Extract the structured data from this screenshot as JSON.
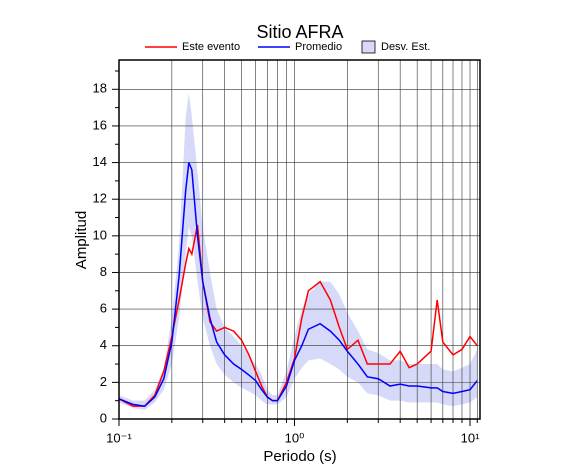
{
  "chart_data": {
    "type": "line",
    "title": "Sitio AFRA",
    "xlabel": "Periodo (s)",
    "ylabel": "Amplitud",
    "xscale": "log",
    "xlim": [
      0.1,
      11.4
    ],
    "ylim": [
      0,
      19.6
    ],
    "xticks": [
      {
        "value": 0.1,
        "label": "10⁻¹"
      },
      {
        "value": 1,
        "label": "10⁰"
      },
      {
        "value": 10,
        "label": "10¹"
      }
    ],
    "xminor_ticks": [
      0.2,
      0.3,
      0.4,
      0.5,
      0.6,
      0.7,
      0.8,
      0.9,
      2,
      3,
      4,
      5,
      6,
      7,
      8,
      9,
      11
    ],
    "yticks": [
      0,
      2,
      4,
      6,
      8,
      10,
      12,
      14,
      16,
      18
    ],
    "yminor_ticks": [
      1,
      3,
      5,
      7,
      9,
      11,
      13,
      15,
      17,
      19
    ],
    "grid": true,
    "x": [
      0.1,
      0.12,
      0.14,
      0.16,
      0.18,
      0.2,
      0.22,
      0.24,
      0.25,
      0.26,
      0.28,
      0.3,
      0.33,
      0.36,
      0.4,
      0.45,
      0.5,
      0.55,
      0.6,
      0.65,
      0.7,
      0.75,
      0.8,
      0.9,
      1.0,
      1.1,
      1.2,
      1.4,
      1.6,
      1.8,
      2.0,
      2.3,
      2.6,
      3.0,
      3.5,
      4.0,
      4.5,
      5.0,
      6.0,
      6.5,
      7,
      8,
      9,
      10,
      11
    ],
    "series": [
      {
        "name": "Este evento",
        "color": "#ff0000",
        "values": [
          1.1,
          0.7,
          0.7,
          1.3,
          2.6,
          4.5,
          6.5,
          8.5,
          9.3,
          9.0,
          10.6,
          7.5,
          5.3,
          4.8,
          5.0,
          4.8,
          4.3,
          3.5,
          2.6,
          1.8,
          1.2,
          1.0,
          1.0,
          2.0,
          3.3,
          5.5,
          7.0,
          7.5,
          6.5,
          5.0,
          3.8,
          4.3,
          3.0,
          3.0,
          3.0,
          3.7,
          2.8,
          3.0,
          3.7,
          6.5,
          4.2,
          3.5,
          3.8,
          4.5,
          4.0
        ]
      },
      {
        "name": "Promedio",
        "color": "#0000ff",
        "values": [
          1.1,
          0.8,
          0.7,
          1.2,
          2.2,
          4.2,
          7.8,
          12.5,
          14.0,
          13.6,
          10.0,
          7.5,
          5.5,
          4.2,
          3.5,
          3.0,
          2.7,
          2.4,
          2.1,
          1.6,
          1.2,
          1.0,
          1.0,
          1.8,
          3.2,
          4.0,
          4.9,
          5.2,
          4.8,
          4.3,
          3.7,
          3.0,
          2.3,
          2.2,
          1.8,
          1.9,
          1.8,
          1.8,
          1.7,
          1.7,
          1.5,
          1.4,
          1.5,
          1.6,
          2.1
        ]
      },
      {
        "name": "Desv. Est.",
        "color": "#d6d9f7",
        "band": true,
        "upper": [
          1.3,
          1.0,
          1.0,
          1.6,
          2.8,
          5.5,
          9.5,
          16.5,
          17.8,
          16.5,
          13.5,
          10.5,
          8,
          6,
          5,
          4.5,
          4,
          3.5,
          3,
          2.4,
          1.6,
          1.3,
          1.3,
          2.6,
          4.5,
          6,
          6.8,
          7.5,
          7.5,
          6.8,
          5.8,
          4.8,
          3.8,
          3.6,
          3.2,
          3.2,
          3.0,
          3.0,
          3.0,
          3.0,
          2.7,
          2.6,
          2.8,
          3.0,
          3.8
        ],
        "lower": [
          0.9,
          0.6,
          0.5,
          0.9,
          1.6,
          3.0,
          5.5,
          9,
          10.5,
          10,
          7.5,
          5.5,
          4,
          3.0,
          2.4,
          2.0,
          1.7,
          1.5,
          1.3,
          1.0,
          0.8,
          0.8,
          0.8,
          1.2,
          2.2,
          2.8,
          3.2,
          3.3,
          3.0,
          2.7,
          2.3,
          2.0,
          1.4,
          1.3,
          1.0,
          1.0,
          0.9,
          0.9,
          0.9,
          0.9,
          0.8,
          0.7,
          0.8,
          0.9,
          1.2
        ]
      }
    ]
  }
}
